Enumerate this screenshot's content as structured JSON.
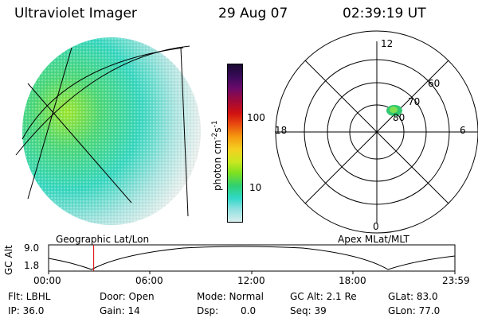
{
  "header": {
    "title": "Ultraviolet Imager",
    "date": "29 Aug 07",
    "time": "02:39:19 UT"
  },
  "colorbar": {
    "unit_label": "photon cm",
    "unit_sup1": "-2",
    "unit_s": "s",
    "unit_sup2": "-1",
    "tick_100": "100",
    "tick_10": "10",
    "colors": [
      "#1a0a33",
      "#3a0a5a",
      "#6a0a6a",
      "#a00a3a",
      "#d01010",
      "#e84a10",
      "#f59a10",
      "#f5d020",
      "#c8e820",
      "#7ee020",
      "#30d070",
      "#30d8c8",
      "#90e0e0",
      "#d8eeee"
    ]
  },
  "polar": {
    "labels": {
      "top": "12",
      "bottom": "0",
      "left": "18",
      "right": "6"
    },
    "lat_labels": [
      "60",
      "70",
      "80"
    ]
  },
  "timeline": {
    "left_label": "Geographic Lat/Lon",
    "right_label": "Apex MLat/MLT",
    "y_title": "GC Alt",
    "y_high": "9.0",
    "y_low": "1.8",
    "x_ticks": [
      "00:00",
      "06:00",
      "12:00",
      "18:00",
      "23:59"
    ],
    "marker_time_fraction": 0.111,
    "marker_color": "#e00000"
  },
  "status": {
    "flt": "Flt: LBHL",
    "ip": "IP: 36.0",
    "door": "Door: Open",
    "gain": "Gain: 14",
    "mode": "Mode: Normal",
    "dsp_label": "Dsp:",
    "dsp_value": "0.0",
    "gc_alt": "GC Alt: 2.1 Re",
    "seq": "Seq: 39",
    "glat": "GLat: 83.0",
    "glon": "GLon: 77.0"
  }
}
